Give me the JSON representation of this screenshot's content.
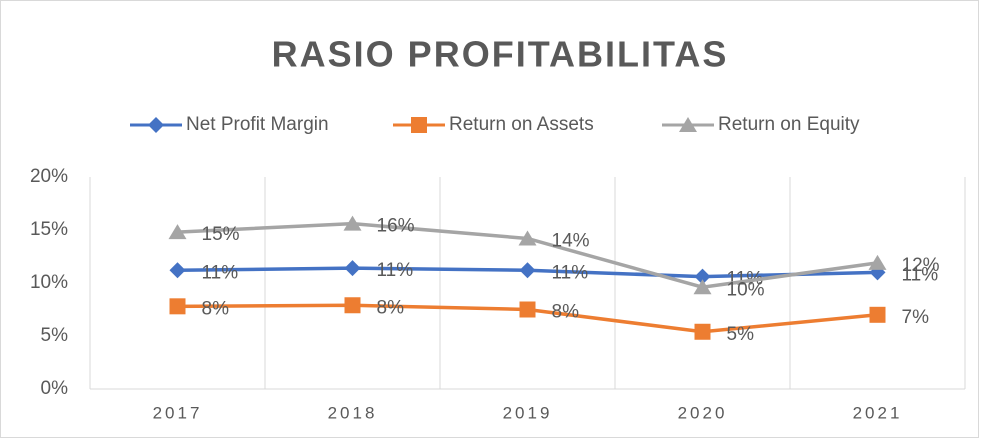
{
  "chart_data": {
    "type": "line",
    "title": "RASIO PROFITABILITAS",
    "categories": [
      "2017",
      "2018",
      "2019",
      "2020",
      "2021"
    ],
    "series": [
      {
        "name": "Net Profit Margin",
        "color": "#4472c4",
        "marker": "diamond",
        "values": [
          11.2,
          11.4,
          11.2,
          10.6,
          11.0
        ],
        "value_labels": [
          "11%",
          "11%",
          "11%",
          "11%",
          "11%"
        ]
      },
      {
        "name": "Return on Assets",
        "color": "#ed7d31",
        "marker": "square",
        "values": [
          7.8,
          7.9,
          7.5,
          5.4,
          7.0
        ],
        "value_labels": [
          "8%",
          "8%",
          "8%",
          "5%",
          "7%"
        ]
      },
      {
        "name": "Return on Equity",
        "color": "#a5a5a5",
        "marker": "triangle",
        "values": [
          14.8,
          15.6,
          14.2,
          9.6,
          11.9
        ],
        "value_labels": [
          "15%",
          "16%",
          "14%",
          "10%",
          "12%"
        ]
      }
    ],
    "ylim": [
      0,
      20
    ],
    "yticks": [
      {
        "value": 0,
        "label": "0%"
      },
      {
        "value": 5,
        "label": "5%"
      },
      {
        "value": 10,
        "label": "10%"
      },
      {
        "value": 15,
        "label": "15%"
      },
      {
        "value": 20,
        "label": "20%"
      }
    ],
    "legend": "top"
  }
}
